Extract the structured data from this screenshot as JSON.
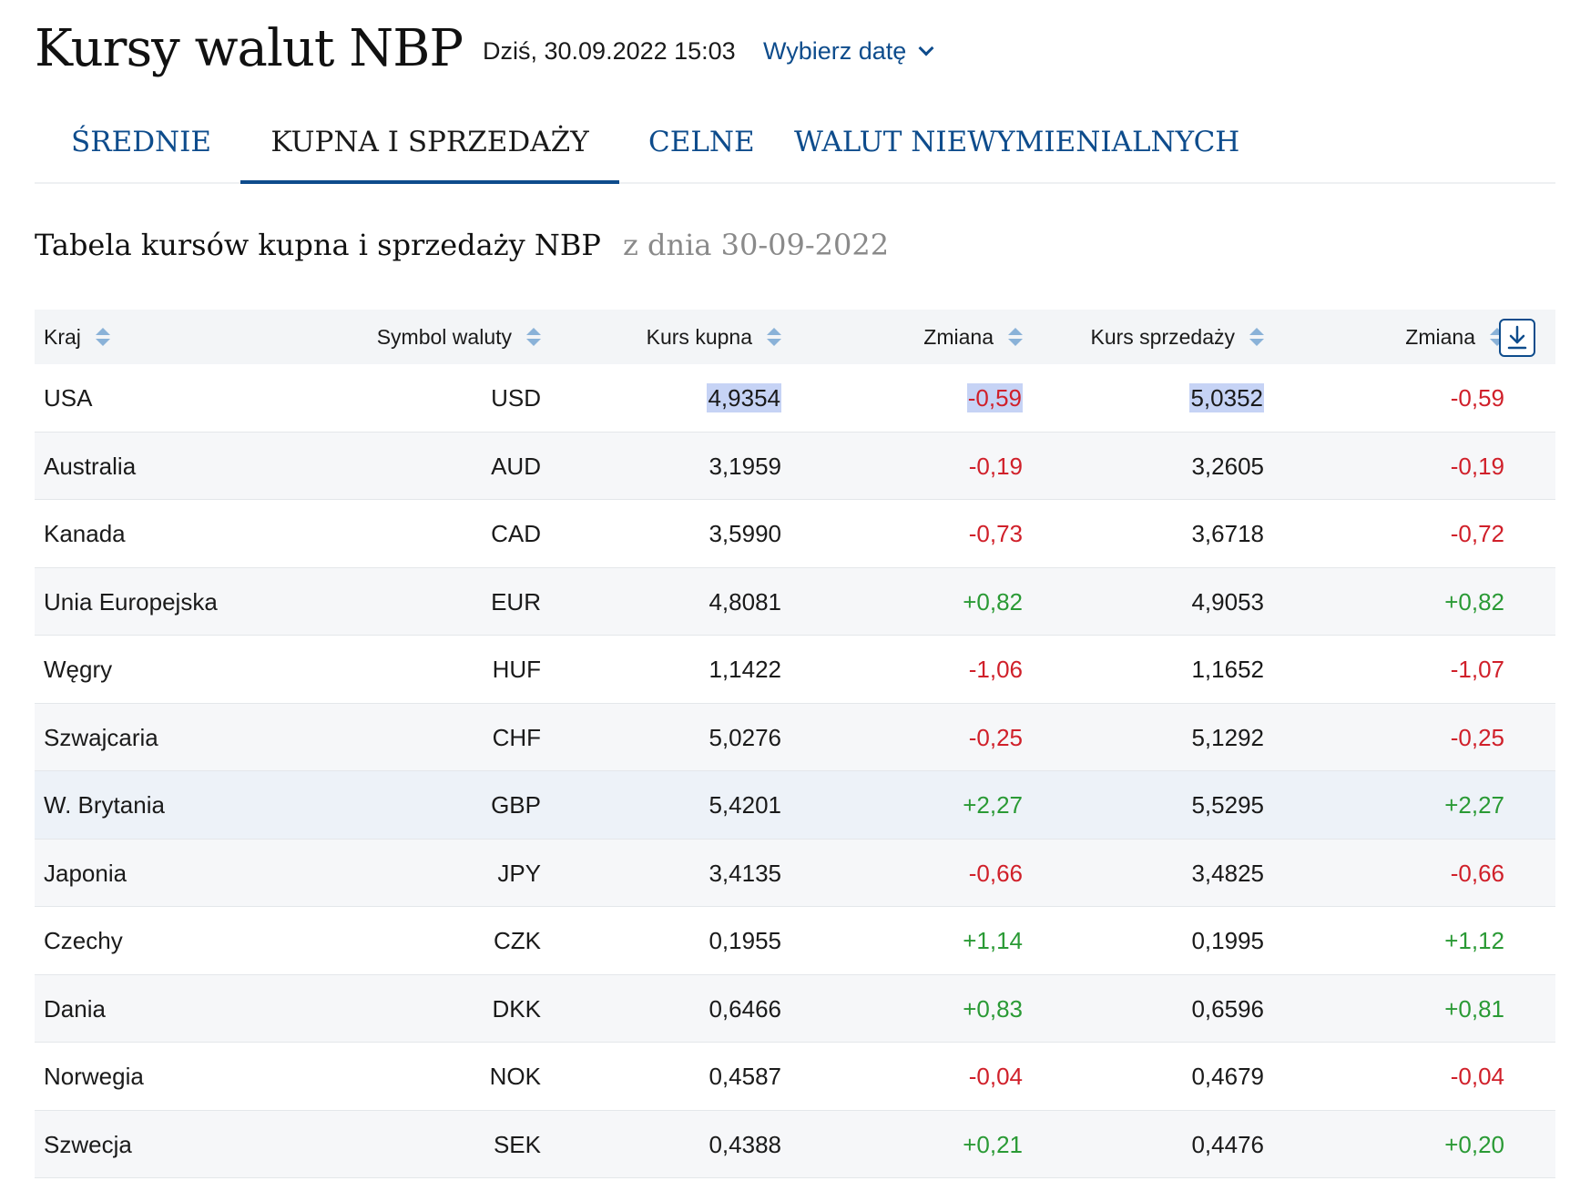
{
  "header": {
    "title": "Kursy walut NBP",
    "today": "Dziś, 30.09.2022 15:03",
    "date_picker": "Wybierz datę"
  },
  "tabs": [
    {
      "label": "ŚREDNIE",
      "active": false
    },
    {
      "label": "KUPNA I SPRZEDAŻY",
      "active": true
    },
    {
      "label": "CELNE",
      "active": false
    },
    {
      "label": "WALUT NIEWYMIENIALNYCH",
      "active": false
    }
  ],
  "subtitle": {
    "title": "Tabela kursów kupna i sprzedaży NBP",
    "date": "z dnia 30-09-2022"
  },
  "table": {
    "columns": [
      "Kraj",
      "Symbol waluty",
      "Kurs kupna",
      "Zmiana",
      "Kurs sprzedaży",
      "Zmiana"
    ],
    "rows": [
      {
        "country": "USA",
        "symbol": "USD",
        "buy": "4,9354",
        "buy_change": "-0,59",
        "sell": "5,0352",
        "sell_change": "-0,59"
      },
      {
        "country": "Australia",
        "symbol": "AUD",
        "buy": "3,1959",
        "buy_change": "-0,19",
        "sell": "3,2605",
        "sell_change": "-0,19"
      },
      {
        "country": "Kanada",
        "symbol": "CAD",
        "buy": "3,5990",
        "buy_change": "-0,73",
        "sell": "3,6718",
        "sell_change": "-0,72"
      },
      {
        "country": "Unia Europejska",
        "symbol": "EUR",
        "buy": "4,8081",
        "buy_change": "+0,82",
        "sell": "4,9053",
        "sell_change": "+0,82"
      },
      {
        "country": "Węgry",
        "symbol": "HUF",
        "buy": "1,1422",
        "buy_change": "-1,06",
        "sell": "1,1652",
        "sell_change": "-1,07"
      },
      {
        "country": "Szwajcaria",
        "symbol": "CHF",
        "buy": "5,0276",
        "buy_change": "-0,25",
        "sell": "5,1292",
        "sell_change": "-0,25"
      },
      {
        "country": "W. Brytania",
        "symbol": "GBP",
        "buy": "5,4201",
        "buy_change": "+2,27",
        "sell": "5,5295",
        "sell_change": "+2,27"
      },
      {
        "country": "Japonia",
        "symbol": "JPY",
        "buy": "3,4135",
        "buy_change": "-0,66",
        "sell": "3,4825",
        "sell_change": "-0,66"
      },
      {
        "country": "Czechy",
        "symbol": "CZK",
        "buy": "0,1955",
        "buy_change": "+1,14",
        "sell": "0,1995",
        "sell_change": "+1,12"
      },
      {
        "country": "Dania",
        "symbol": "DKK",
        "buy": "0,6466",
        "buy_change": "+0,83",
        "sell": "0,6596",
        "sell_change": "+0,81"
      },
      {
        "country": "Norwegia",
        "symbol": "NOK",
        "buy": "0,4587",
        "buy_change": "-0,04",
        "sell": "0,4679",
        "sell_change": "-0,04"
      },
      {
        "country": "Szwecja",
        "symbol": "SEK",
        "buy": "0,4388",
        "buy_change": "+0,21",
        "sell": "0,4476",
        "sell_change": "+0,20"
      }
    ]
  },
  "icons": {
    "sort": "sort-arrows-icon",
    "download": "download-icon",
    "date_chevron": "chevron-down-icon"
  },
  "colors": {
    "accent": "#0e4c8c",
    "negative": "#d0202a",
    "positive": "#2a9a35",
    "header_bg": "#f3f5f7",
    "selection": "#c6d3f5"
  }
}
